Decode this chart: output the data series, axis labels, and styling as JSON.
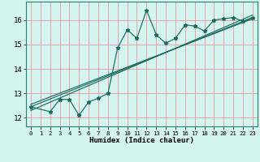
{
  "title": "",
  "xlabel": "Humidex (Indice chaleur)",
  "bg_color": "#d4f4f0",
  "grid_color": "#e8a0a8",
  "line_color": "#1a6b5e",
  "xlim": [
    -0.5,
    23.5
  ],
  "ylim": [
    11.65,
    16.75
  ],
  "xticks": [
    0,
    1,
    2,
    3,
    4,
    5,
    6,
    7,
    8,
    9,
    10,
    11,
    12,
    13,
    14,
    15,
    16,
    17,
    18,
    19,
    20,
    21,
    22,
    23
  ],
  "yticks": [
    12,
    13,
    14,
    15,
    16
  ],
  "jagged_x": [
    0,
    2,
    3,
    4,
    5,
    6,
    7,
    8,
    9,
    10,
    11,
    12,
    13,
    14,
    15,
    16,
    17,
    18,
    19,
    20,
    21,
    22,
    23
  ],
  "jagged_y": [
    12.45,
    12.25,
    12.75,
    12.75,
    12.1,
    12.65,
    12.8,
    13.0,
    14.85,
    15.6,
    15.25,
    16.4,
    15.4,
    15.05,
    15.25,
    15.8,
    15.75,
    15.55,
    16.0,
    16.05,
    16.1,
    15.95,
    16.1
  ],
  "line1_x": [
    0,
    23
  ],
  "line1_y": [
    12.45,
    16.1
  ],
  "line2_x": [
    0,
    23
  ],
  "line2_y": [
    12.3,
    16.2
  ],
  "line3_x": [
    0,
    23
  ],
  "line3_y": [
    12.55,
    16.05
  ],
  "xlabel_fontsize": 6.5,
  "ytick_fontsize": 6.5,
  "xtick_fontsize": 5.2
}
